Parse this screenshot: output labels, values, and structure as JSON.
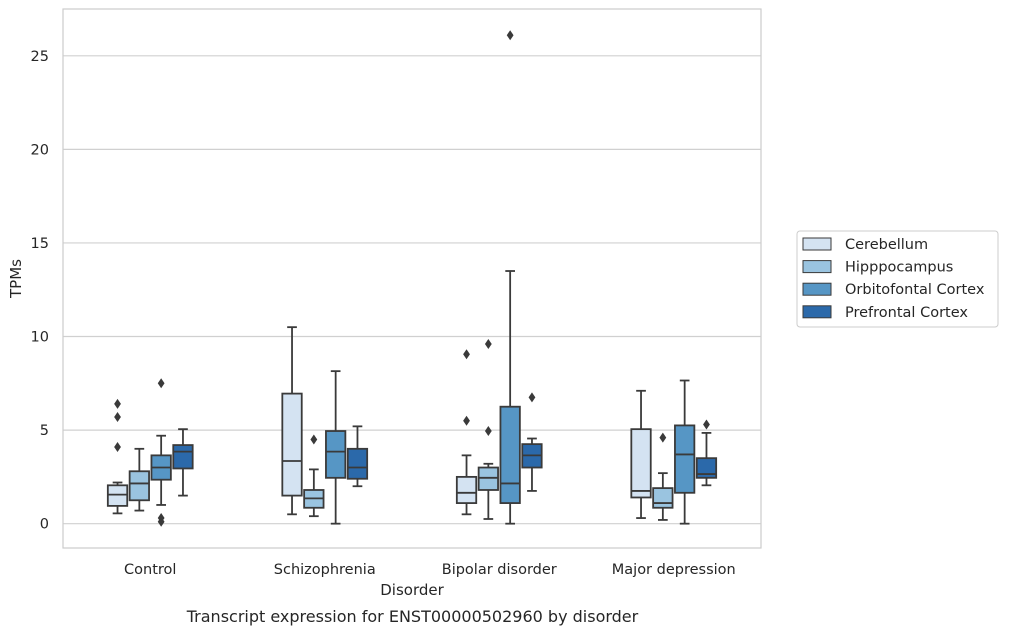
{
  "chart_data": {
    "type": "boxplot",
    "title": "",
    "caption": "Transcript expression for ENST00000502960 by disorder",
    "xlabel": "Disorder",
    "ylabel": "TPMs",
    "ylim": [
      -1.3,
      27.5
    ],
    "yticks": [
      0,
      5,
      10,
      15,
      20,
      25
    ],
    "grid": "horizontal",
    "legend_position": "center-right outside",
    "categories": [
      "Control",
      "Schizophrenia",
      "Bipolar disorder",
      "Major depression"
    ],
    "series": [
      {
        "name": "Cerebellum",
        "color": "#d4e3f2",
        "boxes": [
          {
            "whislo": 0.55,
            "q1": 0.95,
            "med": 1.55,
            "q3": 2.05,
            "whishi": 2.2,
            "fliers": [
              4.1,
              5.7,
              6.4
            ]
          },
          {
            "whislo": 0.5,
            "q1": 1.5,
            "med": 3.35,
            "q3": 6.95,
            "whishi": 10.5,
            "fliers": []
          },
          {
            "whislo": 0.5,
            "q1": 1.1,
            "med": 1.65,
            "q3": 2.5,
            "whishi": 3.65,
            "fliers": [
              5.5,
              9.05
            ]
          },
          {
            "whislo": 0.3,
            "q1": 1.4,
            "med": 1.75,
            "q3": 5.05,
            "whishi": 7.1,
            "fliers": []
          }
        ]
      },
      {
        "name": "Hipppocampus",
        "color": "#9ac4e0",
        "boxes": [
          {
            "whislo": 0.7,
            "q1": 1.25,
            "med": 2.15,
            "q3": 2.8,
            "whishi": 4.0,
            "fliers": []
          },
          {
            "whislo": 0.4,
            "q1": 0.85,
            "med": 1.35,
            "q3": 1.8,
            "whishi": 2.9,
            "fliers": [
              4.5
            ]
          },
          {
            "whislo": 0.25,
            "q1": 1.8,
            "med": 2.45,
            "q3": 3.0,
            "whishi": 3.2,
            "fliers": [
              4.95,
              9.6
            ]
          },
          {
            "whislo": 0.2,
            "q1": 0.85,
            "med": 1.1,
            "q3": 1.9,
            "whishi": 2.7,
            "fliers": [
              4.6
            ]
          }
        ]
      },
      {
        "name": "Orbitofontal Cortex",
        "color": "#5696c5",
        "boxes": [
          {
            "whislo": 1.0,
            "q1": 2.35,
            "med": 3.0,
            "q3": 3.65,
            "whishi": 4.7,
            "fliers": [
              0.1,
              0.3,
              7.5
            ]
          },
          {
            "whislo": 0.0,
            "q1": 2.45,
            "med": 3.85,
            "q3": 4.95,
            "whishi": 8.15,
            "fliers": []
          },
          {
            "whislo": 0.0,
            "q1": 1.1,
            "med": 2.15,
            "q3": 6.25,
            "whishi": 13.5,
            "fliers": [
              26.1
            ]
          },
          {
            "whislo": 0.0,
            "q1": 1.65,
            "med": 3.7,
            "q3": 5.25,
            "whishi": 7.65,
            "fliers": []
          }
        ]
      },
      {
        "name": "Prefrontal Cortex",
        "color": "#2b69aa",
        "boxes": [
          {
            "whislo": 1.5,
            "q1": 2.95,
            "med": 3.85,
            "q3": 4.2,
            "whishi": 5.05,
            "fliers": []
          },
          {
            "whislo": 2.0,
            "q1": 2.4,
            "med": 3.0,
            "q3": 4.0,
            "whishi": 5.2,
            "fliers": []
          },
          {
            "whislo": 1.75,
            "q1": 3.0,
            "med": 3.65,
            "q3": 4.25,
            "whishi": 4.55,
            "fliers": [
              6.75
            ]
          },
          {
            "whislo": 2.05,
            "q1": 2.45,
            "med": 2.65,
            "q3": 3.5,
            "whishi": 4.85,
            "fliers": [
              5.3
            ]
          }
        ]
      }
    ]
  }
}
